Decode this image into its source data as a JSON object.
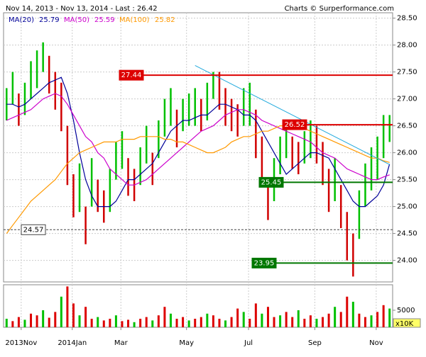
{
  "chart_data": {
    "type": "ohlc",
    "title": "Nov 14, 2013 - Nov 13, 2014 - Last : 26.42",
    "source": "Charts © Surperformance.com",
    "xlim": [
      -0.5,
      63.5
    ],
    "xticks": [
      {
        "value": 2.4,
        "label": "2013Nov"
      },
      {
        "value": 10.8,
        "label": "2014Jan"
      },
      {
        "value": 18.8,
        "label": "Mar"
      },
      {
        "value": 29.6,
        "label": "May"
      },
      {
        "value": 39.8,
        "label": "Jul"
      },
      {
        "value": 50.7,
        "label": "Sep"
      },
      {
        "value": 60.8,
        "label": "Nov"
      }
    ],
    "ylim": [
      23.6,
      28.6
    ],
    "yticks": [
      {
        "value": 24,
        "label": "24.00"
      },
      {
        "value": 24.5,
        "label": "24.50"
      },
      {
        "value": 25,
        "label": "25.00"
      },
      {
        "value": 25.5,
        "label": "25.50"
      },
      {
        "value": 26,
        "label": "26.00"
      },
      {
        "value": 26.5,
        "label": "26.50"
      },
      {
        "value": 27,
        "label": "27.00"
      },
      {
        "value": 27.5,
        "label": "27.50"
      },
      {
        "value": 28,
        "label": "28.00"
      },
      {
        "value": 28.5,
        "label": "28.50"
      }
    ],
    "grid": true,
    "up_color": "#00c000",
    "down_color": "#d00000",
    "low": [
      26.6,
      26.9,
      26.5,
      26.7,
      27.0,
      27.2,
      27.5,
      27.1,
      26.8,
      26.4,
      25.4,
      24.8,
      24.9,
      24.3,
      25.0,
      24.9,
      24.7,
      24.9,
      25.5,
      25.7,
      25.2,
      25.1,
      25.4,
      25.8,
      25.4,
      25.9,
      26.3,
      26.5,
      26.1,
      26.4,
      26.5,
      26.5,
      26.4,
      26.6,
      27.0,
      26.8,
      26.5,
      26.4,
      26.3,
      26.5,
      26.5,
      25.9,
      25.4,
      24.75,
      25.1,
      25.6,
      25.9,
      25.7,
      25.6,
      25.8,
      25.9,
      25.8,
      25.4,
      24.9,
      25.1,
      24.6,
      24.0,
      23.7,
      24.4,
      25.0,
      25.3,
      25.5,
      25.9,
      26.2
    ],
    "high": [
      27.2,
      27.5,
      27.1,
      27.3,
      27.7,
      27.9,
      28.05,
      27.8,
      27.5,
      27.3,
      26.5,
      25.6,
      25.8,
      25.0,
      25.9,
      25.5,
      25.3,
      25.7,
      26.2,
      26.4,
      25.9,
      25.7,
      26.1,
      26.5,
      26.0,
      26.6,
      27.0,
      27.2,
      26.8,
      27.0,
      27.1,
      27.2,
      27.0,
      27.3,
      27.5,
      27.5,
      27.2,
      27.0,
      26.9,
      27.2,
      27.3,
      26.8,
      26.3,
      25.4,
      25.9,
      26.3,
      26.6,
      26.3,
      26.2,
      26.4,
      26.6,
      26.5,
      26.2,
      25.7,
      25.9,
      25.4,
      24.9,
      24.5,
      25.3,
      25.8,
      26.1,
      26.3,
      26.7,
      26.7
    ],
    "series": [
      {
        "name": "MA(20)",
        "legend_value": 25.79,
        "color": "#000099",
        "values": [
          26.9,
          26.9,
          26.85,
          26.9,
          27.0,
          27.1,
          27.2,
          27.3,
          27.35,
          27.4,
          27.1,
          26.6,
          26.0,
          25.5,
          25.2,
          25.0,
          25.0,
          25.0,
          25.1,
          25.3,
          25.5,
          25.5,
          25.6,
          25.7,
          25.8,
          26.0,
          26.2,
          26.4,
          26.5,
          26.6,
          26.6,
          26.65,
          26.7,
          26.7,
          26.8,
          26.9,
          26.9,
          26.85,
          26.8,
          26.7,
          26.7,
          26.6,
          26.4,
          26.2,
          26.0,
          25.8,
          25.6,
          25.7,
          25.8,
          25.9,
          26.0,
          26.0,
          25.95,
          25.9,
          25.7,
          25.5,
          25.3,
          25.1,
          25.0,
          25.0,
          25.1,
          25.2,
          25.4,
          25.79
        ]
      },
      {
        "name": "MA(50)",
        "legend_value": 25.59,
        "color": "#cc00cc",
        "values": [
          26.6,
          26.65,
          26.7,
          26.75,
          26.8,
          26.9,
          27.0,
          27.05,
          27.1,
          27.05,
          26.9,
          26.7,
          26.5,
          26.3,
          26.2,
          26.0,
          25.9,
          25.7,
          25.6,
          25.5,
          25.4,
          25.4,
          25.45,
          25.5,
          25.6,
          25.7,
          25.8,
          25.9,
          26.0,
          26.1,
          26.2,
          26.3,
          26.4,
          26.45,
          26.5,
          26.6,
          26.7,
          26.75,
          26.8,
          26.8,
          26.75,
          26.7,
          26.6,
          26.55,
          26.5,
          26.45,
          26.4,
          26.35,
          26.3,
          26.25,
          26.2,
          26.1,
          26.0,
          25.95,
          25.9,
          25.8,
          25.7,
          25.65,
          25.6,
          25.55,
          25.5,
          25.5,
          25.55,
          25.59
        ]
      },
      {
        "name": "MA(100)",
        "legend_value": 25.82,
        "color": "#ff9900",
        "values": [
          24.5,
          24.65,
          24.8,
          24.95,
          25.1,
          25.2,
          25.3,
          25.4,
          25.5,
          25.65,
          25.8,
          25.9,
          26.0,
          26.05,
          26.1,
          26.15,
          26.2,
          26.2,
          26.2,
          26.25,
          26.25,
          26.25,
          26.3,
          26.3,
          26.3,
          26.3,
          26.25,
          26.25,
          26.2,
          26.2,
          26.15,
          26.1,
          26.05,
          26.0,
          26.0,
          26.05,
          26.1,
          26.2,
          26.25,
          26.3,
          26.3,
          26.35,
          26.4,
          26.4,
          26.45,
          26.5,
          26.5,
          26.5,
          26.45,
          26.45,
          26.4,
          26.35,
          26.3,
          26.25,
          26.2,
          26.15,
          26.1,
          26.05,
          26.0,
          25.95,
          25.9,
          25.9,
          25.85,
          25.82
        ]
      }
    ],
    "levels": [
      {
        "value": 27.44,
        "color": "#dd0000"
      },
      {
        "value": 26.52,
        "color": "#dd0000"
      },
      {
        "value": 25.45,
        "color": "#007700"
      },
      {
        "value": 23.95,
        "color": "#007700"
      },
      {
        "value": 24.57,
        "color": "#444444",
        "dashed": true
      }
    ],
    "trend_line": {
      "color": "#22aadd",
      "x": [
        31,
        63
      ],
      "y": [
        27.62,
        25.78
      ]
    },
    "volume": {
      "unit_label": "x10K",
      "ylim": [
        0,
        12500
      ],
      "yticks": [
        5000
      ],
      "color": "#dd0000",
      "alt_color": "#00c000",
      "values": [
        2500,
        1800,
        3000,
        2200,
        4000,
        3500,
        5000,
        2800,
        4500,
        9000,
        12000,
        7000,
        3500,
        6000,
        2500,
        3000,
        2000,
        2500,
        3500,
        1800,
        2200,
        1500,
        2500,
        3000,
        2000,
        3500,
        6000,
        4000,
        2500,
        3000,
        2000,
        2500,
        3000,
        4000,
        3500,
        2500,
        2000,
        3000,
        5500,
        4500,
        2500,
        7000,
        4000,
        6000,
        3000,
        3500,
        4500,
        3000,
        5000,
        2500,
        3500,
        2500,
        3000,
        4000,
        6000,
        4500,
        9000,
        7500,
        4000,
        3000,
        3500,
        4500,
        6500,
        5500
      ]
    }
  }
}
